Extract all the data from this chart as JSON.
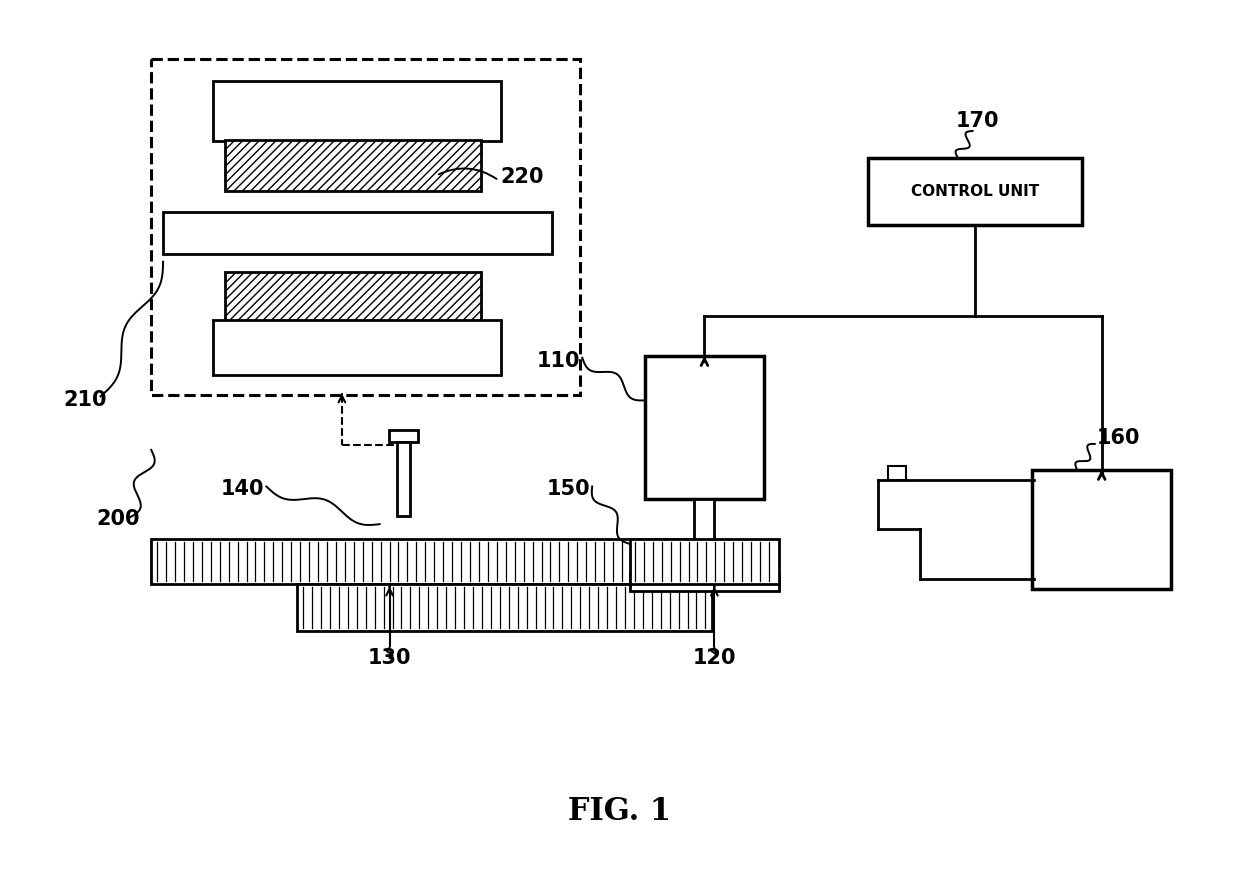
{
  "title": "FIG. 1",
  "bg": "#ffffff",
  "fw": 12.4,
  "fh": 8.71,
  "dpi": 100
}
